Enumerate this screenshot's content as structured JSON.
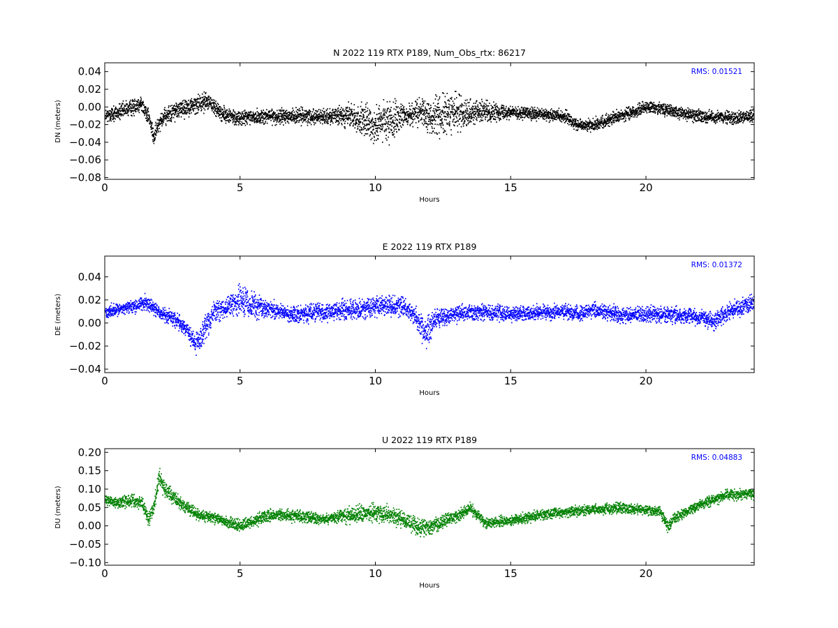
{
  "chart_data": [
    {
      "type": "scatter",
      "title": "N 2022 119 RTX  P189, Num_Obs_rtx: 86217",
      "xlabel": "Hours",
      "ylabel": "DN (meters)",
      "xlim": [
        0,
        24
      ],
      "ylim": [
        -0.082,
        0.05
      ],
      "xticks": [
        0,
        5,
        10,
        15,
        20
      ],
      "yticks": [
        0.04,
        0.02,
        0.0,
        -0.02,
        -0.04,
        -0.06,
        -0.08
      ],
      "ytick_labels": [
        "0.04",
        "0.02",
        "0.00",
        "−0.02",
        "−0.04",
        "−0.06",
        "−0.08"
      ],
      "grid": false,
      "annotation": "RMS:  0.01521",
      "series": [
        {
          "color": "#000000",
          "marker": "dot",
          "trend": {
            "x": [
              0,
              0.5,
              1.0,
              1.3,
              1.6,
              1.8,
              2.0,
              2.5,
              3.0,
              3.5,
              3.8,
              4.2,
              4.5,
              5,
              6,
              7,
              8,
              9,
              9.5,
              10,
              10.5,
              11,
              11.5,
              12,
              12.5,
              13,
              13.5,
              14,
              15,
              16,
              17,
              17.5,
              18,
              18.5,
              19,
              20,
              20.5,
              21,
              22,
              23,
              24
            ],
            "y": [
              -0.01,
              -0.005,
              0.0,
              0.005,
              -0.01,
              -0.035,
              -0.015,
              -0.005,
              0.0,
              0.005,
              0.008,
              -0.005,
              -0.01,
              -0.012,
              -0.01,
              -0.01,
              -0.01,
              -0.01,
              -0.015,
              -0.02,
              -0.015,
              -0.01,
              -0.005,
              -0.01,
              -0.008,
              -0.005,
              -0.005,
              -0.005,
              -0.005,
              -0.008,
              -0.01,
              -0.02,
              -0.02,
              -0.015,
              -0.01,
              0.0,
              0.0,
              -0.005,
              -0.01,
              -0.012,
              -0.01
            ]
          },
          "spread": {
            "x": [
              0,
              3.5,
              4.5,
              8.5,
              9.5,
              10.5,
              11.2,
              11.5,
              12.5,
              13.5,
              15,
              24
            ],
            "y": [
              0.012,
              0.015,
              0.012,
              0.012,
              0.025,
              0.035,
              0.015,
              0.02,
              0.035,
              0.02,
              0.01,
              0.01
            ]
          }
        }
      ]
    },
    {
      "type": "scatter",
      "title": "E 2022 119 RTX  P189",
      "xlabel": "Hours",
      "ylabel": "DE (meters)",
      "xlim": [
        0,
        24
      ],
      "ylim": [
        -0.043,
        0.058
      ],
      "xticks": [
        0,
        5,
        10,
        15,
        20
      ],
      "yticks": [
        0.04,
        0.02,
        0.0,
        -0.02,
        -0.04
      ],
      "ytick_labels": [
        "0.04",
        "0.02",
        "0.00",
        "−0.02",
        "−0.04"
      ],
      "grid": false,
      "annotation": "RMS:  0.01372",
      "series": [
        {
          "color": "#0000ff",
          "marker": "dot",
          "trend": {
            "x": [
              0,
              0.5,
              1.0,
              1.5,
              2.0,
              2.5,
              3.0,
              3.3,
              3.6,
              4.0,
              4.5,
              5.0,
              5.5,
              6.0,
              7,
              8,
              9,
              10,
              11,
              11.5,
              11.8,
              12.2,
              13,
              14,
              15,
              16,
              17,
              17.5,
              18,
              18.5,
              19,
              20,
              21,
              22,
              22.5,
              23,
              24
            ],
            "y": [
              0.01,
              0.012,
              0.015,
              0.018,
              0.01,
              0.005,
              -0.005,
              -0.018,
              -0.01,
              0.01,
              0.015,
              0.02,
              0.015,
              0.012,
              0.008,
              0.01,
              0.012,
              0.015,
              0.015,
              0.005,
              -0.01,
              0.005,
              0.008,
              0.01,
              0.008,
              0.01,
              0.01,
              0.008,
              0.012,
              0.01,
              0.008,
              0.008,
              0.008,
              0.005,
              0.002,
              0.01,
              0.018
            ]
          },
          "spread": {
            "x": [
              0,
              3,
              3.5,
              4.5,
              5.2,
              6,
              9,
              11.5,
              12,
              12.5,
              15,
              24
            ],
            "y": [
              0.008,
              0.01,
              0.015,
              0.012,
              0.02,
              0.01,
              0.012,
              0.012,
              0.02,
              0.01,
              0.009,
              0.01
            ]
          }
        }
      ]
    },
    {
      "type": "scatter",
      "title": "U 2022 119 RTX  P189",
      "xlabel": "Hours",
      "ylabel": "DU (meters)",
      "xlim": [
        0,
        24
      ],
      "ylim": [
        -0.107,
        0.21
      ],
      "xticks": [
        0,
        5,
        10,
        15,
        20
      ],
      "yticks": [
        0.2,
        0.15,
        0.1,
        0.05,
        0.0,
        -0.05,
        -0.1
      ],
      "ytick_labels": [
        "0.20",
        "0.15",
        "0.10",
        "0.05",
        "0.00",
        "−0.05",
        "−0.10"
      ],
      "grid": false,
      "annotation": "RMS:  0.04883",
      "series": [
        {
          "color": "#008000",
          "marker": "dot",
          "trend": {
            "x": [
              0,
              0.5,
              1.0,
              1.4,
              1.6,
              1.8,
              2.0,
              2.2,
              2.5,
              3.0,
              3.5,
              4,
              5,
              6,
              7,
              8,
              9,
              10,
              11,
              11.5,
              12,
              13,
              13.5,
              14,
              15,
              16,
              17,
              18,
              19,
              20,
              20.5,
              20.8,
              21,
              21.5,
              22,
              23,
              24
            ],
            "y": [
              0.07,
              0.065,
              0.07,
              0.06,
              0.02,
              0.05,
              0.14,
              0.1,
              0.08,
              0.05,
              0.03,
              0.025,
              0.0,
              0.03,
              0.03,
              0.02,
              0.03,
              0.04,
              0.02,
              0.0,
              0.0,
              0.03,
              0.05,
              0.01,
              0.015,
              0.03,
              0.04,
              0.045,
              0.05,
              0.045,
              0.04,
              0.0,
              0.02,
              0.04,
              0.06,
              0.085,
              0.09
            ]
          },
          "spread": {
            "x": [
              0,
              1.8,
              2.1,
              2.6,
              4,
              5,
              8.5,
              9,
              11.5,
              12,
              14,
              24
            ],
            "y": [
              0.02,
              0.03,
              0.035,
              0.025,
              0.02,
              0.025,
              0.02,
              0.03,
              0.035,
              0.03,
              0.02,
              0.02
            ]
          }
        }
      ]
    }
  ]
}
